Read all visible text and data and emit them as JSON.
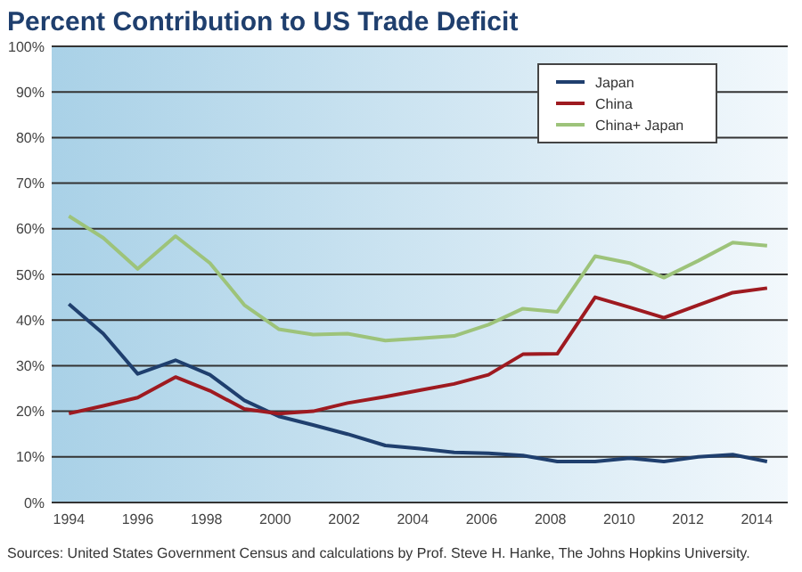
{
  "chart_data": {
    "type": "line",
    "title": "Percent Contribution to US Trade Deficit",
    "x": [
      1994,
      1995,
      1996,
      1997.1,
      1998.1,
      1999.1,
      2000.1,
      2001.1,
      2002.1,
      2003.2,
      2004.2,
      2005.2,
      2006.2,
      2007.2,
      2008.2,
      2009.3,
      2010.3,
      2011.3,
      2012.3,
      2013.3,
      2014.3
    ],
    "series": [
      {
        "name": "Japan",
        "color": "#1f3f6e",
        "values": [
          43.5,
          37,
          28.2,
          31.2,
          28,
          22.4,
          18.9,
          17,
          15,
          12.5,
          11.8,
          11,
          10.8,
          10.3,
          9,
          9,
          9.7,
          9,
          10,
          10.5,
          9
        ]
      },
      {
        "name": "China",
        "color": "#9e1a20",
        "values": [
          19.5,
          21.2,
          23,
          27.5,
          24.5,
          20.5,
          19.5,
          20,
          21.8,
          23.2,
          24.6,
          26,
          28,
          32.5,
          32.6,
          45,
          42.8,
          40.5,
          43.3,
          46,
          47
        ]
      },
      {
        "name": "China+ Japan",
        "color": "#9dc37a",
        "values": [
          62.8,
          58,
          51.2,
          58.4,
          52.5,
          43.3,
          38,
          36.8,
          37,
          35.5,
          36,
          36.5,
          39,
          42.5,
          41.8,
          54,
          52.5,
          49.3,
          53,
          57,
          56.3
        ]
      }
    ],
    "xlim": [
      1993.5,
      2014.9
    ],
    "xticks": [
      1994,
      1996,
      1998,
      2000,
      2002,
      2004,
      2006,
      2008,
      2010,
      2012,
      2014
    ],
    "ylim": [
      0,
      100
    ],
    "yticks": [
      {
        "value": 0,
        "label": "0%"
      },
      {
        "value": 10,
        "label": "10%"
      },
      {
        "value": 20,
        "label": "20%"
      },
      {
        "value": 30,
        "label": "30%"
      },
      {
        "value": 40,
        "label": "40%"
      },
      {
        "value": 50,
        "label": "50%"
      },
      {
        "value": 60,
        "label": "60%"
      },
      {
        "value": 70,
        "label": "70%"
      },
      {
        "value": 80,
        "label": "80%"
      },
      {
        "value": 90,
        "label": "90%"
      },
      {
        "value": 100,
        "label": "100%"
      }
    ],
    "grid": "y",
    "legend": "top right",
    "marker": "none",
    "line_style": "solid",
    "annotations": [
      "Sources: United States Government Census and calculations by Prof. Steve H. Hanke, The Johns Hopkins University."
    ]
  }
}
